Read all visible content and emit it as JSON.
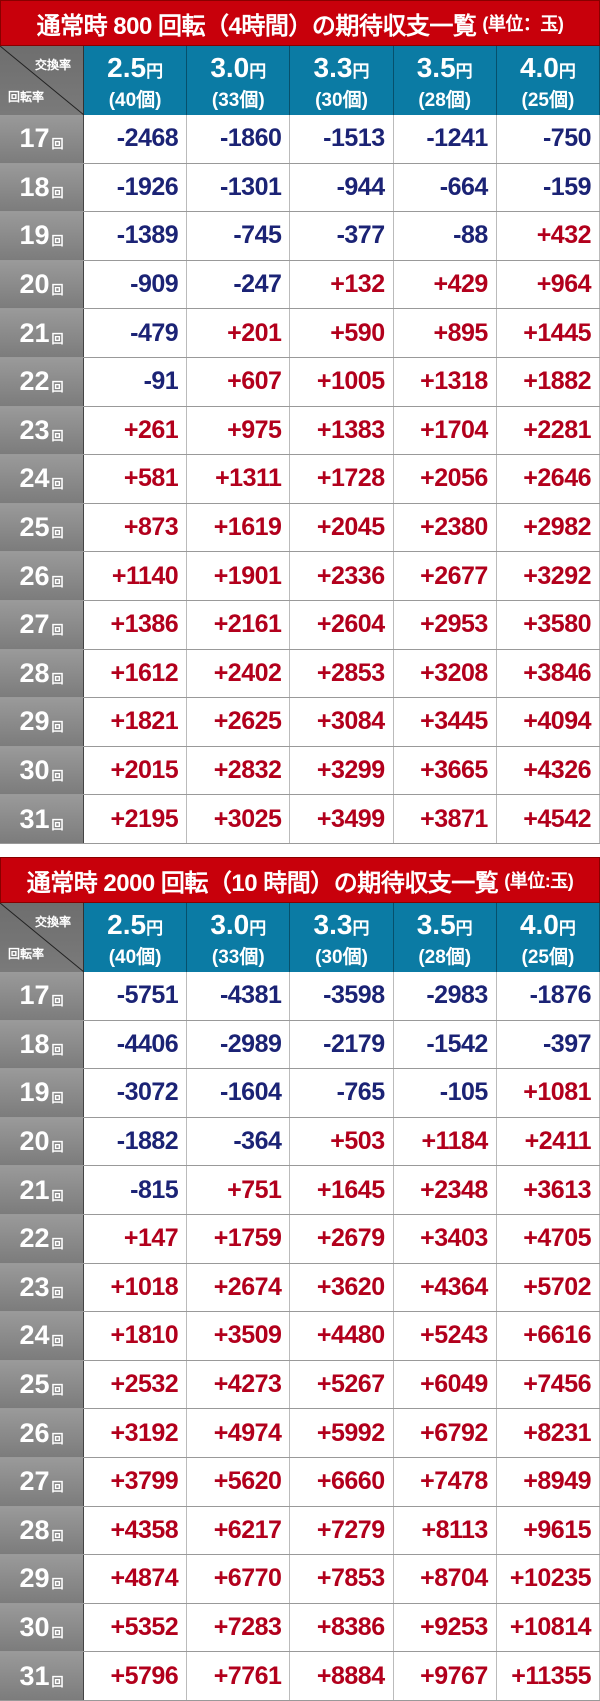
{
  "colors": {
    "title_bg": "#c8000b",
    "header_bg": "#0b7ba4",
    "negative": "#1b2375",
    "positive": "#b2001c"
  },
  "header": {
    "corner_top": "交換率",
    "corner_bottom": "回転率",
    "columns": [
      {
        "rate": "2.5",
        "yen": "円",
        "balls": "(40個)"
      },
      {
        "rate": "3.0",
        "yen": "円",
        "balls": "(33個)"
      },
      {
        "rate": "3.3",
        "yen": "円",
        "balls": "(30個)"
      },
      {
        "rate": "3.5",
        "yen": "円",
        "balls": "(28個)"
      },
      {
        "rate": "4.0",
        "yen": "円",
        "balls": "(25個)"
      }
    ],
    "row_suffix": "回"
  },
  "tables": [
    {
      "title": "通常時 800 回転（4時間）の期待収支一覧",
      "unit": "(単位：玉)",
      "rows": [
        {
          "label": "17",
          "values": [
            "-2468",
            "-1860",
            "-1513",
            "-1241",
            "-750"
          ]
        },
        {
          "label": "18",
          "values": [
            "-1926",
            "-1301",
            "-944",
            "-664",
            "-159"
          ]
        },
        {
          "label": "19",
          "values": [
            "-1389",
            "-745",
            "-377",
            "-88",
            "+432"
          ]
        },
        {
          "label": "20",
          "values": [
            "-909",
            "-247",
            "+132",
            "+429",
            "+964"
          ]
        },
        {
          "label": "21",
          "values": [
            "-479",
            "+201",
            "+590",
            "+895",
            "+1445"
          ]
        },
        {
          "label": "22",
          "values": [
            "-91",
            "+607",
            "+1005",
            "+1318",
            "+1882"
          ]
        },
        {
          "label": "23",
          "values": [
            "+261",
            "+975",
            "+1383",
            "+1704",
            "+2281"
          ]
        },
        {
          "label": "24",
          "values": [
            "+581",
            "+1311",
            "+1728",
            "+2056",
            "+2646"
          ]
        },
        {
          "label": "25",
          "values": [
            "+873",
            "+1619",
            "+2045",
            "+2380",
            "+2982"
          ]
        },
        {
          "label": "26",
          "values": [
            "+1140",
            "+1901",
            "+2336",
            "+2677",
            "+3292"
          ]
        },
        {
          "label": "27",
          "values": [
            "+1386",
            "+2161",
            "+2604",
            "+2953",
            "+3580"
          ]
        },
        {
          "label": "28",
          "values": [
            "+1612",
            "+2402",
            "+2853",
            "+3208",
            "+3846"
          ]
        },
        {
          "label": "29",
          "values": [
            "+1821",
            "+2625",
            "+3084",
            "+3445",
            "+4094"
          ]
        },
        {
          "label": "30",
          "values": [
            "+2015",
            "+2832",
            "+3299",
            "+3665",
            "+4326"
          ]
        },
        {
          "label": "31",
          "values": [
            "+2195",
            "+3025",
            "+3499",
            "+3871",
            "+4542"
          ]
        }
      ]
    },
    {
      "title": "通常時 2000 回転（10 時間）の期待収支一覧",
      "unit": "(単位:玉)",
      "rows": [
        {
          "label": "17",
          "values": [
            "-5751",
            "-4381",
            "-3598",
            "-2983",
            "-1876"
          ]
        },
        {
          "label": "18",
          "values": [
            "-4406",
            "-2989",
            "-2179",
            "-1542",
            "-397"
          ]
        },
        {
          "label": "19",
          "values": [
            "-3072",
            "-1604",
            "-765",
            "-105",
            "+1081"
          ]
        },
        {
          "label": "20",
          "values": [
            "-1882",
            "-364",
            "+503",
            "+1184",
            "+2411"
          ]
        },
        {
          "label": "21",
          "values": [
            "-815",
            "+751",
            "+1645",
            "+2348",
            "+3613"
          ]
        },
        {
          "label": "22",
          "values": [
            "+147",
            "+1759",
            "+2679",
            "+3403",
            "+4705"
          ]
        },
        {
          "label": "23",
          "values": [
            "+1018",
            "+2674",
            "+3620",
            "+4364",
            "+5702"
          ]
        },
        {
          "label": "24",
          "values": [
            "+1810",
            "+3509",
            "+4480",
            "+5243",
            "+6616"
          ]
        },
        {
          "label": "25",
          "values": [
            "+2532",
            "+4273",
            "+5267",
            "+6049",
            "+7456"
          ]
        },
        {
          "label": "26",
          "values": [
            "+3192",
            "+4974",
            "+5992",
            "+6792",
            "+8231"
          ]
        },
        {
          "label": "27",
          "values": [
            "+3799",
            "+5620",
            "+6660",
            "+7478",
            "+8949"
          ]
        },
        {
          "label": "28",
          "values": [
            "+4358",
            "+6217",
            "+7279",
            "+8113",
            "+9615"
          ]
        },
        {
          "label": "29",
          "values": [
            "+4874",
            "+6770",
            "+7853",
            "+8704",
            "+10235"
          ]
        },
        {
          "label": "30",
          "values": [
            "+5352",
            "+7283",
            "+8386",
            "+9253",
            "+10814"
          ]
        },
        {
          "label": "31",
          "values": [
            "+5796",
            "+7761",
            "+8884",
            "+9767",
            "+11355"
          ]
        }
      ]
    }
  ]
}
